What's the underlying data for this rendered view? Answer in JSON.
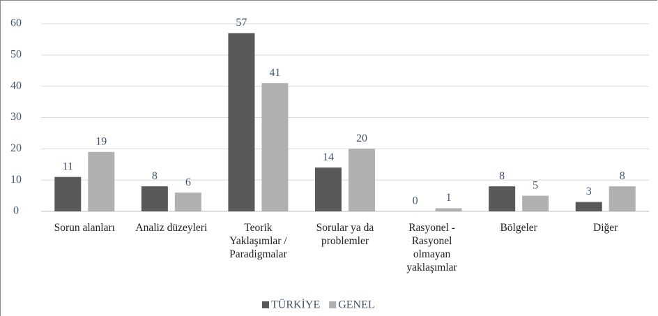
{
  "chart_data": {
    "type": "bar",
    "categories": [
      "Sorun alanları",
      "Analiz düzeyleri",
      "Teorik Yaklaşımlar / Paradigmalar",
      "Sorular ya da problemler",
      "Rasyonel - Rasyonel olmayan yaklaşımlar",
      "Bölgeler",
      "Diğer"
    ],
    "series": [
      {
        "name": "TÜRKİYE",
        "color": "#595959",
        "values": [
          11,
          8,
          57,
          14,
          0,
          8,
          3
        ]
      },
      {
        "name": "GENEL",
        "color": "#b0b0b0",
        "values": [
          19,
          6,
          41,
          20,
          1,
          5,
          8
        ]
      }
    ],
    "ylim": [
      0,
      60
    ],
    "yticks": [
      0,
      10,
      20,
      30,
      40,
      50,
      60
    ],
    "grid": true,
    "legend": "bottom"
  }
}
